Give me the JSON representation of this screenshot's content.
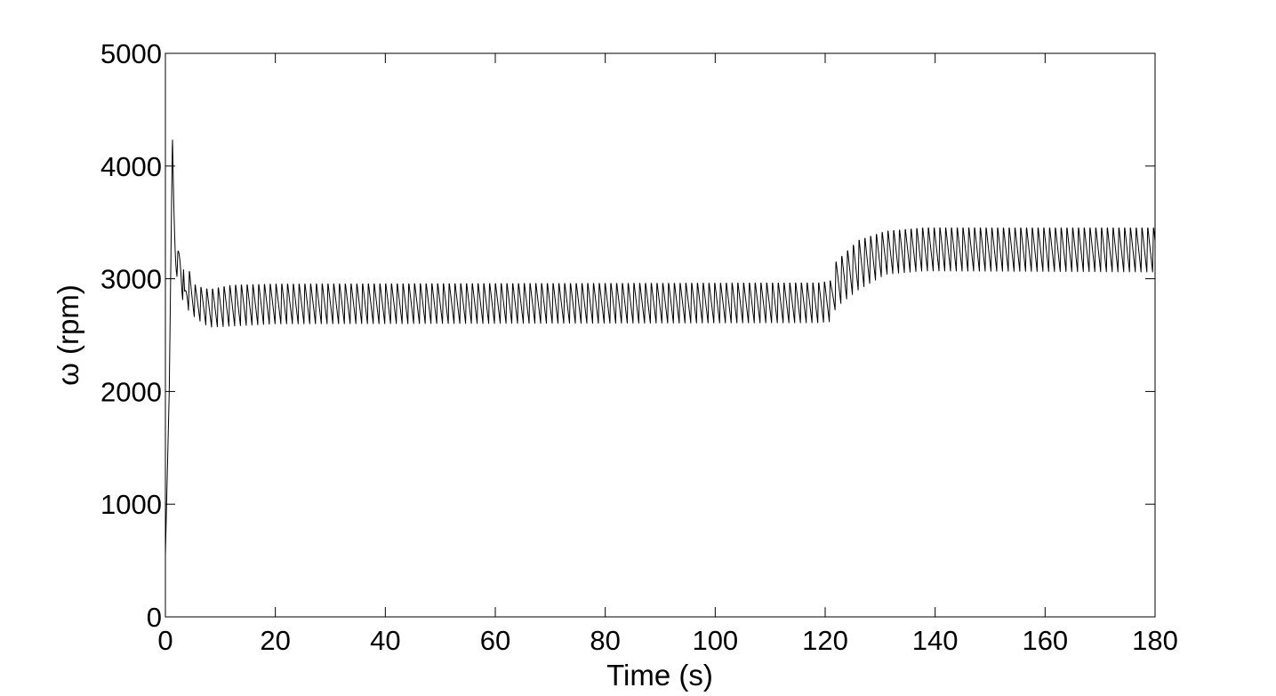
{
  "chart_data": {
    "type": "line",
    "title": "",
    "xlabel": "Time (s)",
    "ylabel": "ω (rpm)",
    "xlim": [
      0,
      180
    ],
    "ylim": [
      0,
      5000
    ],
    "xticks": [
      0,
      20,
      40,
      60,
      80,
      100,
      120,
      140,
      160,
      180
    ],
    "yticks": [
      0,
      1000,
      2000,
      3000,
      4000,
      5000
    ],
    "grid": false,
    "line_color": "#000000",
    "series": [
      {
        "name": "",
        "envelope_upper": [
          [
            0,
            550
          ],
          [
            0.7,
            2000
          ],
          [
            1.3,
            4350
          ],
          [
            2.0,
            3150
          ],
          [
            2.9,
            3480
          ],
          [
            3.5,
            2900
          ],
          [
            4.2,
            3100
          ],
          [
            5.5,
            2950
          ],
          [
            8,
            2920
          ],
          [
            12,
            2960
          ],
          [
            20,
            2970
          ],
          [
            119,
            2980
          ],
          [
            121,
            3000
          ],
          [
            122,
            3170
          ],
          [
            126,
            3360
          ],
          [
            131,
            3440
          ],
          [
            138,
            3470
          ],
          [
            180,
            3470
          ]
        ],
        "envelope_lower": [
          [
            0,
            550
          ],
          [
            0.7,
            2000
          ],
          [
            1.3,
            3200
          ],
          [
            2.0,
            3050
          ],
          [
            2.9,
            2790
          ],
          [
            3.5,
            2850
          ],
          [
            4.2,
            2720
          ],
          [
            5.5,
            2650
          ],
          [
            8,
            2570
          ],
          [
            12,
            2580
          ],
          [
            20,
            2600
          ],
          [
            119,
            2610
          ],
          [
            121,
            2620
          ],
          [
            122,
            2750
          ],
          [
            126,
            2900
          ],
          [
            131,
            3040
          ],
          [
            138,
            3070
          ],
          [
            180,
            3060
          ]
        ],
        "oscillation_period_s": 1.05
      }
    ]
  }
}
